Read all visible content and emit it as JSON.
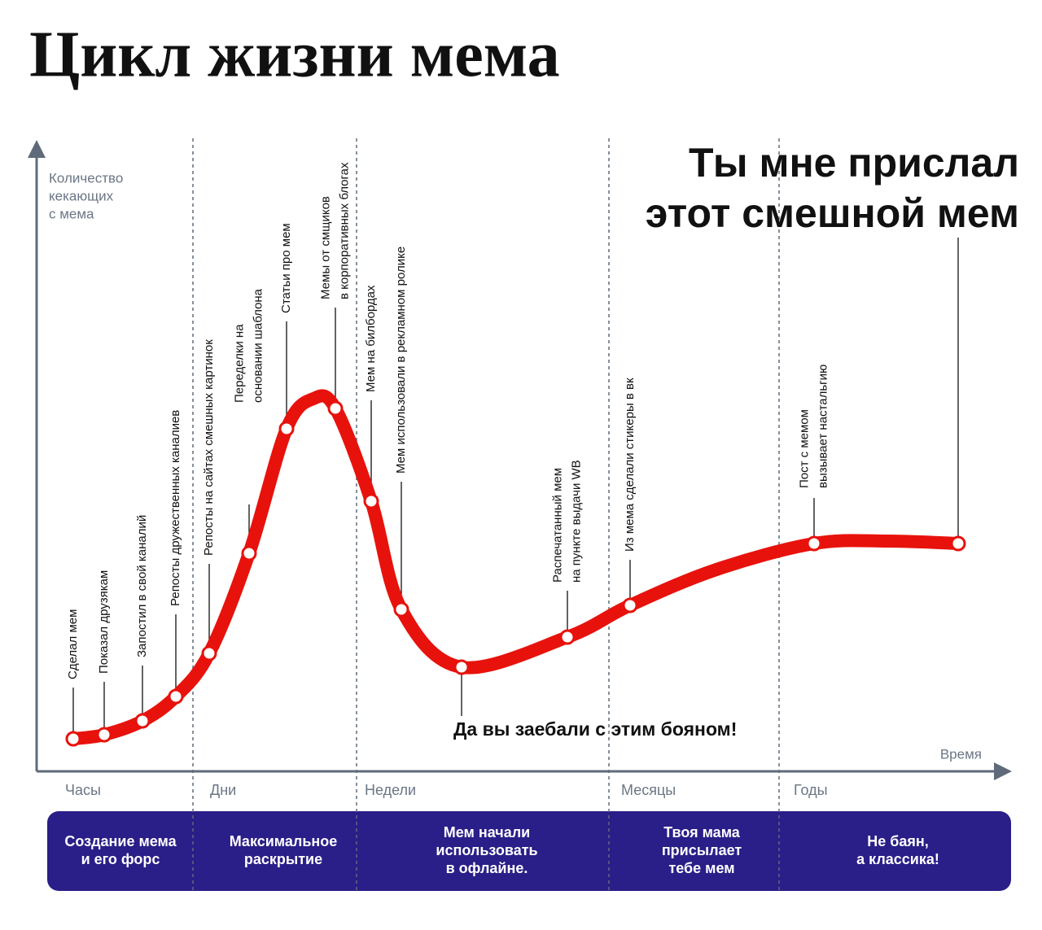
{
  "title": "Цикл жизни мема",
  "axis": {
    "y_label": [
      "Количество",
      "кекающих",
      "с мема"
    ],
    "x_label": "Время"
  },
  "periods": [
    "Часы",
    "Дни",
    "Недели",
    "Месяцы",
    "Годы"
  ],
  "stages": [
    {
      "lines": [
        "Создание мема",
        "и его форс"
      ]
    },
    {
      "lines": [
        "Максимальное",
        "раскрытие"
      ]
    },
    {
      "lines": [
        "Мем начали",
        "использовать",
        "в офлайне."
      ]
    },
    {
      "lines": [
        "Твоя мама",
        "присылает",
        "тебе мем"
      ]
    },
    {
      "lines": [
        "Не баян,",
        "а классика!"
      ]
    }
  ],
  "events": [
    {
      "lines": [
        "Сделал мем"
      ]
    },
    {
      "lines": [
        "Показал друзякам"
      ]
    },
    {
      "lines": [
        "Запостил в свой каналий"
      ]
    },
    {
      "lines": [
        "Репосты дружественных каналиев"
      ]
    },
    {
      "lines": [
        "Репосты на сайтах смешных картинок"
      ]
    },
    {
      "lines": [
        "Переделки на",
        "основании шаблона"
      ]
    },
    {
      "lines": [
        "Статьи про мем"
      ]
    },
    {
      "lines": [
        "Мемы от смщиков",
        "в корпоративных блогах"
      ]
    },
    {
      "lines": [
        "Мем на билбордах"
      ]
    },
    {
      "lines": [
        "Мем использовали в рекламном ролике"
      ]
    },
    {
      "lines": [
        "Да вы заебали с этим бояном!"
      ]
    },
    {
      "lines": [
        "Распечатанный мем",
        "на пункте выдачи  WB"
      ]
    },
    {
      "lines": [
        "Из мема сделали стикеры  в вк"
      ]
    },
    {
      "lines": [
        "Пост с мемом",
        "вызывает настальгию"
      ]
    },
    {
      "lines": [
        "Ты мне прислал",
        "этот смешной мем"
      ]
    }
  ]
}
